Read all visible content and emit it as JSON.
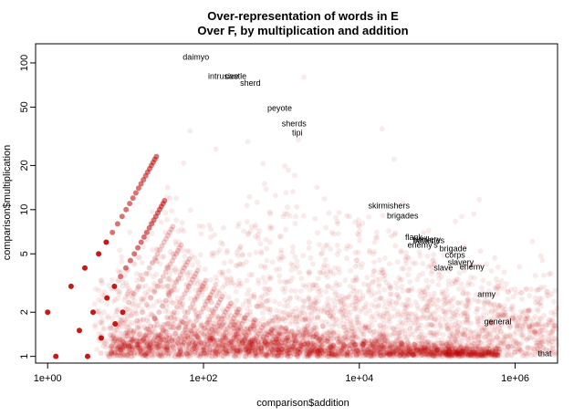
{
  "chart_data": {
    "type": "scatter",
    "title": [
      "Over-representation of words in E",
      "Over F, by multiplication and addition"
    ],
    "xlabel": "comparison$addition",
    "ylabel": "comparison$multiplication",
    "x_scale": "log",
    "y_scale": "log",
    "xlim": [
      0.7,
      3500000
    ],
    "ylim": [
      0.9,
      135
    ],
    "x_ticks": [
      {
        "value": 1,
        "label": "1e+00"
      },
      {
        "value": 100,
        "label": "1e+02"
      },
      {
        "value": 10000,
        "label": "1e+04"
      },
      {
        "value": 1000000,
        "label": "1e+06"
      }
    ],
    "y_ticks": [
      {
        "value": 1,
        "label": "1"
      },
      {
        "value": 2,
        "label": "2"
      },
      {
        "value": 5,
        "label": "5"
      },
      {
        "value": 10,
        "label": "10"
      },
      {
        "value": 20,
        "label": "20"
      },
      {
        "value": 50,
        "label": "50"
      },
      {
        "value": 100,
        "label": "100"
      }
    ],
    "point_color": "#c00000",
    "grid": false,
    "labeled_points": [
      {
        "label": "daimyo",
        "x": 80,
        "y": 105
      },
      {
        "label": "intrusive",
        "x": 180,
        "y": 78
      },
      {
        "label": "castle",
        "x": 260,
        "y": 78
      },
      {
        "label": "sherd",
        "x": 400,
        "y": 70
      },
      {
        "label": "peyote",
        "x": 950,
        "y": 47
      },
      {
        "label": "sherds",
        "x": 1450,
        "y": 37
      },
      {
        "label": "tipi",
        "x": 1600,
        "y": 32
      },
      {
        "label": "skirmishers",
        "x": 24000,
        "y": 10.2
      },
      {
        "label": "brigades",
        "x": 36000,
        "y": 8.7
      },
      {
        "label": "flank",
        "x": 50000,
        "y": 6.2
      },
      {
        "label": "artillery",
        "x": 75000,
        "y": 6.0
      },
      {
        "label": "batteries",
        "x": 78000,
        "y": 5.9
      },
      {
        "label": "enemy's",
        "x": 65000,
        "y": 5.5
      },
      {
        "label": "brigade",
        "x": 160000,
        "y": 5.2
      },
      {
        "label": "corps",
        "x": 170000,
        "y": 4.7
      },
      {
        "label": "slavery",
        "x": 200000,
        "y": 4.2
      },
      {
        "label": "slave",
        "x": 120000,
        "y": 3.85
      },
      {
        "label": "enemy",
        "x": 280000,
        "y": 3.9
      },
      {
        "label": "army",
        "x": 430000,
        "y": 2.55
      },
      {
        "label": "general",
        "x": 600000,
        "y": 1.65
      },
      {
        "label": "that",
        "x": 2400000,
        "y": 1.0
      }
    ]
  }
}
